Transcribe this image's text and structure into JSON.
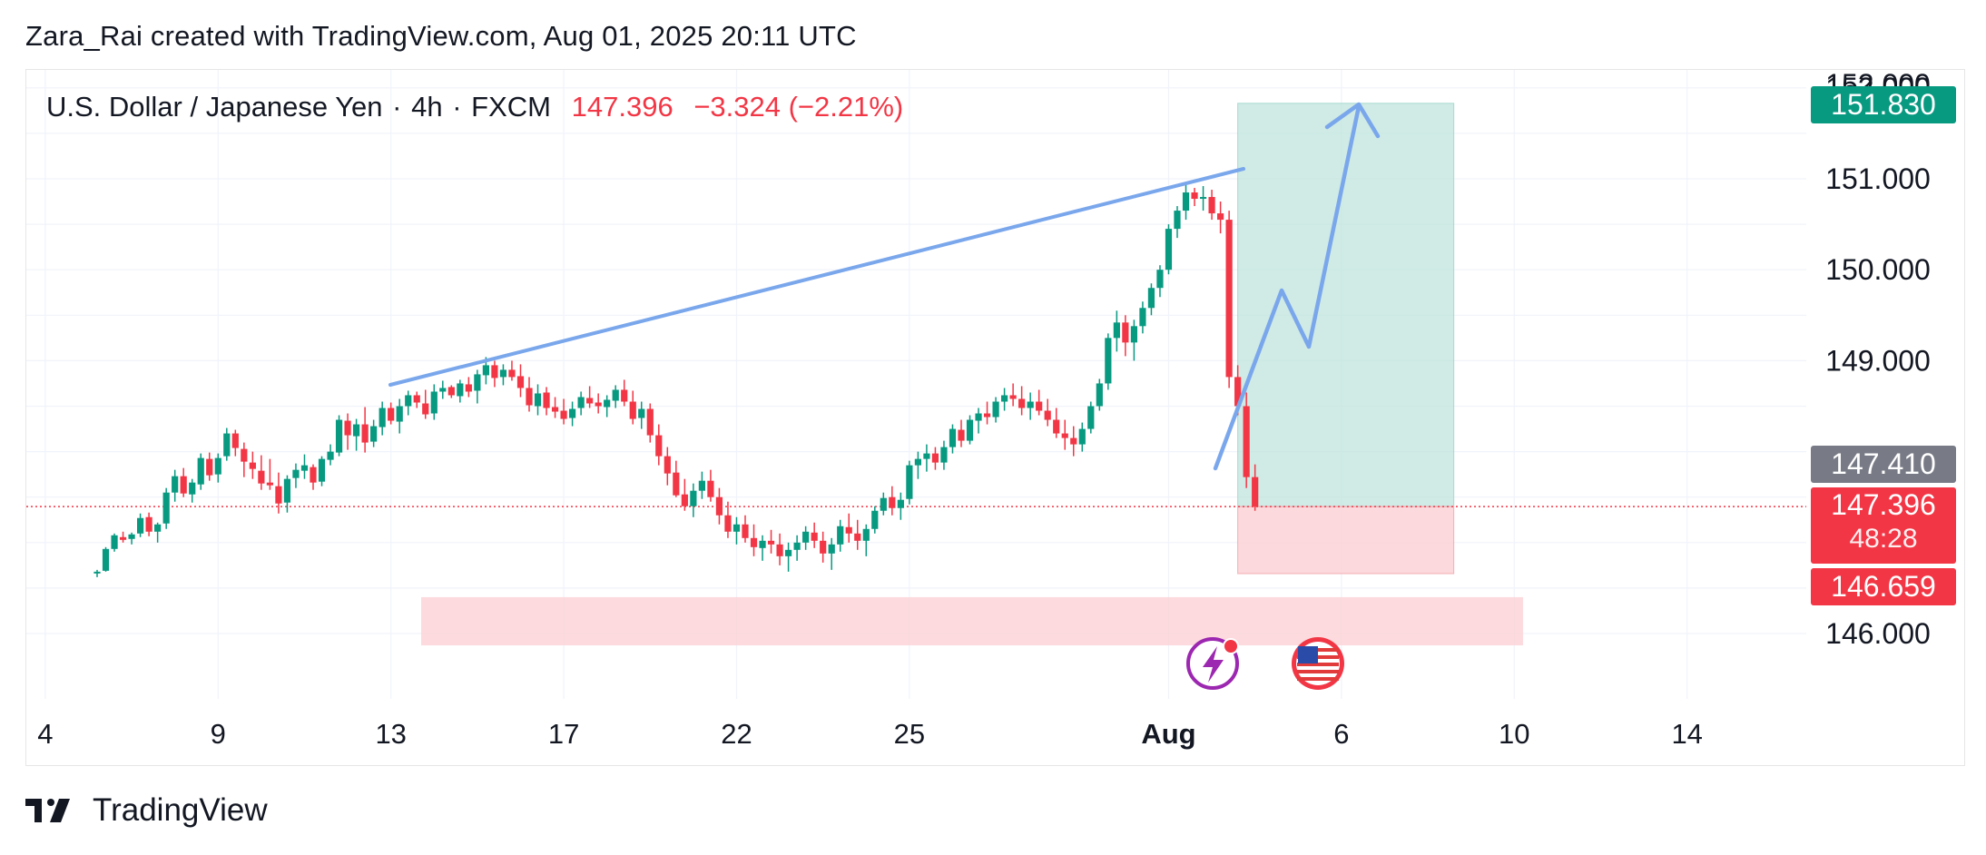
{
  "attribution": "Zara_Rai created with TradingView.com, Aug 01, 2025 20:11 UTC",
  "legend": {
    "symbol": "U.S. Dollar / Japanese Yen",
    "interval": "4h",
    "exchange": "FXCM",
    "separator": "·",
    "price": "147.396",
    "change": "−3.324 (−2.21%)"
  },
  "price_tags": {
    "target": "151.830",
    "last_close": "147.410",
    "current": "147.396",
    "countdown": "48:28",
    "stop": "146.659"
  },
  "footer": {
    "brand": "TradingView"
  },
  "colors": {
    "up": "#089981",
    "down": "#f23645",
    "trendline": "#7aa7ec",
    "target_zone": "#c3e6de",
    "stop_zone": "#fbd3d7",
    "support_zone": "#fbd3d7",
    "tag_target": "#089981",
    "tag_close": "#787b86",
    "tag_current": "#f23645"
  },
  "chart_data": {
    "type": "candlestick",
    "y_ticks": [
      "152.000",
      "151.000",
      "150.000",
      "149.000",
      "146.000"
    ],
    "x_ticks": [
      {
        "label": "4",
        "bar": -6
      },
      {
        "label": "9",
        "bar": 14
      },
      {
        "label": "13",
        "bar": 34
      },
      {
        "label": "17",
        "bar": 54
      },
      {
        "label": "22",
        "bar": 74
      },
      {
        "label": "25",
        "bar": 94
      },
      {
        "label": "Aug",
        "bar": 124,
        "bold": true
      },
      {
        "label": "6",
        "bar": 144
      },
      {
        "label": "10",
        "bar": 164
      },
      {
        "label": "14",
        "bar": 184
      }
    ],
    "ylim": [
      145.3,
      152.2
    ],
    "candles": [
      [
        146.66,
        146.7,
        146.62,
        146.68
      ],
      [
        146.69,
        146.95,
        146.68,
        146.93
      ],
      [
        146.93,
        147.1,
        146.9,
        147.08
      ],
      [
        147.06,
        147.12,
        147.0,
        147.03
      ],
      [
        147.04,
        147.11,
        146.98,
        147.09
      ],
      [
        147.1,
        147.32,
        147.06,
        147.27
      ],
      [
        147.28,
        147.33,
        147.07,
        147.12
      ],
      [
        147.12,
        147.22,
        147.0,
        147.2
      ],
      [
        147.21,
        147.6,
        147.15,
        147.55
      ],
      [
        147.55,
        147.8,
        147.45,
        147.73
      ],
      [
        147.73,
        147.82,
        147.5,
        147.54
      ],
      [
        147.53,
        147.7,
        147.44,
        147.66
      ],
      [
        147.64,
        147.98,
        147.58,
        147.93
      ],
      [
        147.92,
        147.99,
        147.68,
        147.74
      ],
      [
        147.75,
        147.98,
        147.66,
        147.93
      ],
      [
        147.95,
        148.26,
        147.9,
        148.2
      ],
      [
        148.2,
        148.24,
        147.95,
        148.04
      ],
      [
        148.03,
        148.1,
        147.72,
        147.89
      ],
      [
        147.88,
        148.0,
        147.7,
        147.81
      ],
      [
        147.79,
        147.96,
        147.58,
        147.65
      ],
      [
        147.66,
        147.92,
        147.58,
        147.63
      ],
      [
        147.62,
        147.77,
        147.32,
        147.43
      ],
      [
        147.44,
        147.74,
        147.33,
        147.7
      ],
      [
        147.71,
        147.87,
        147.6,
        147.8
      ],
      [
        147.79,
        147.97,
        147.7,
        147.85
      ],
      [
        147.83,
        147.86,
        147.58,
        147.66
      ],
      [
        147.67,
        147.95,
        147.62,
        147.92
      ],
      [
        147.91,
        148.08,
        147.85,
        148.0
      ],
      [
        147.99,
        148.4,
        147.95,
        148.35
      ],
      [
        148.34,
        148.42,
        148.02,
        148.18
      ],
      [
        148.17,
        148.36,
        148.01,
        148.3
      ],
      [
        148.3,
        148.49,
        147.99,
        148.1
      ],
      [
        148.11,
        148.35,
        148.05,
        148.28
      ],
      [
        148.27,
        148.55,
        148.18,
        148.48
      ],
      [
        148.48,
        148.54,
        148.3,
        148.34
      ],
      [
        148.33,
        148.58,
        148.2,
        148.5
      ],
      [
        148.5,
        148.67,
        148.4,
        148.62
      ],
      [
        148.62,
        148.66,
        148.48,
        148.54
      ],
      [
        148.53,
        148.68,
        148.36,
        148.41
      ],
      [
        148.42,
        148.74,
        148.35,
        148.66
      ],
      [
        148.66,
        148.78,
        148.58,
        148.7
      ],
      [
        148.71,
        148.73,
        148.59,
        148.62
      ],
      [
        148.61,
        148.79,
        148.54,
        148.75
      ],
      [
        148.74,
        148.82,
        148.6,
        148.66
      ],
      [
        148.67,
        148.9,
        148.53,
        148.85
      ],
      [
        148.84,
        149.04,
        148.74,
        148.95
      ],
      [
        148.95,
        149.0,
        148.71,
        148.81
      ],
      [
        148.82,
        148.96,
        148.73,
        148.9
      ],
      [
        148.9,
        149.0,
        148.78,
        148.82
      ],
      [
        148.83,
        148.96,
        148.6,
        148.7
      ],
      [
        148.7,
        148.82,
        148.44,
        148.51
      ],
      [
        148.5,
        148.74,
        148.4,
        148.64
      ],
      [
        148.65,
        148.71,
        148.4,
        148.48
      ],
      [
        148.49,
        148.6,
        148.37,
        148.44
      ],
      [
        148.45,
        148.58,
        148.3,
        148.36
      ],
      [
        148.37,
        148.55,
        148.28,
        148.47
      ],
      [
        148.48,
        148.66,
        148.4,
        148.6
      ],
      [
        148.59,
        148.72,
        148.48,
        148.53
      ],
      [
        148.54,
        148.64,
        148.42,
        148.5
      ],
      [
        148.49,
        148.62,
        148.38,
        148.57
      ],
      [
        148.56,
        148.73,
        148.48,
        148.68
      ],
      [
        148.68,
        148.79,
        148.5,
        148.55
      ],
      [
        148.55,
        148.67,
        148.3,
        148.36
      ],
      [
        148.37,
        148.55,
        148.25,
        148.47
      ],
      [
        148.47,
        148.53,
        148.1,
        148.18
      ],
      [
        148.18,
        148.3,
        147.85,
        147.95
      ],
      [
        147.95,
        148.05,
        147.63,
        147.76
      ],
      [
        147.77,
        147.9,
        147.5,
        147.52
      ],
      [
        147.53,
        147.7,
        147.35,
        147.4
      ],
      [
        147.4,
        147.65,
        147.28,
        147.57
      ],
      [
        147.57,
        147.78,
        147.48,
        147.68
      ],
      [
        147.68,
        147.8,
        147.45,
        147.5
      ],
      [
        147.5,
        147.6,
        147.2,
        147.3
      ],
      [
        147.3,
        147.45,
        147.05,
        147.12
      ],
      [
        147.12,
        147.28,
        146.98,
        147.2
      ],
      [
        147.2,
        147.3,
        147.0,
        147.05
      ],
      [
        147.05,
        147.2,
        146.85,
        146.95
      ],
      [
        146.94,
        147.08,
        146.8,
        147.02
      ],
      [
        147.02,
        147.14,
        146.88,
        146.98
      ],
      [
        146.98,
        147.1,
        146.75,
        146.85
      ],
      [
        146.85,
        147.0,
        146.68,
        146.92
      ],
      [
        146.92,
        147.08,
        146.8,
        147.0
      ],
      [
        147.0,
        147.18,
        146.92,
        147.12
      ],
      [
        147.11,
        147.22,
        146.94,
        147.02
      ],
      [
        147.02,
        147.12,
        146.78,
        146.88
      ],
      [
        146.88,
        147.05,
        146.7,
        146.98
      ],
      [
        146.98,
        147.25,
        146.9,
        147.18
      ],
      [
        147.17,
        147.32,
        147.0,
        147.1
      ],
      [
        147.1,
        147.25,
        146.92,
        147.02
      ],
      [
        147.02,
        147.2,
        146.85,
        147.15
      ],
      [
        147.15,
        147.4,
        147.1,
        147.35
      ],
      [
        147.35,
        147.55,
        147.3,
        147.49
      ],
      [
        147.5,
        147.62,
        147.3,
        147.38
      ],
      [
        147.38,
        147.55,
        147.25,
        147.47
      ],
      [
        147.48,
        147.9,
        147.42,
        147.85
      ],
      [
        147.85,
        148.0,
        147.7,
        147.92
      ],
      [
        147.92,
        148.08,
        147.78,
        147.98
      ],
      [
        147.98,
        148.05,
        147.8,
        147.88
      ],
      [
        147.88,
        148.12,
        147.8,
        148.05
      ],
      [
        148.05,
        148.3,
        147.98,
        148.25
      ],
      [
        148.24,
        148.35,
        148.05,
        148.12
      ],
      [
        148.12,
        148.4,
        148.08,
        148.35
      ],
      [
        148.34,
        148.48,
        148.2,
        148.42
      ],
      [
        148.42,
        148.55,
        148.3,
        148.38
      ],
      [
        148.38,
        148.6,
        148.32,
        148.55
      ],
      [
        148.55,
        148.7,
        148.45,
        148.62
      ],
      [
        148.62,
        148.75,
        148.5,
        148.58
      ],
      [
        148.58,
        148.72,
        148.4,
        148.48
      ],
      [
        148.48,
        148.65,
        148.35,
        148.55
      ],
      [
        148.55,
        148.68,
        148.4,
        148.45
      ],
      [
        148.45,
        148.58,
        148.28,
        148.35
      ],
      [
        148.35,
        148.48,
        148.15,
        148.2
      ],
      [
        148.2,
        148.35,
        148.02,
        148.15
      ],
      [
        148.15,
        148.28,
        147.95,
        148.08
      ],
      [
        148.08,
        148.32,
        148.0,
        148.25
      ],
      [
        148.25,
        148.55,
        148.2,
        148.5
      ],
      [
        148.5,
        148.8,
        148.45,
        148.75
      ],
      [
        148.75,
        149.3,
        148.68,
        149.25
      ],
      [
        149.25,
        149.55,
        149.1,
        149.42
      ],
      [
        149.42,
        149.5,
        149.05,
        149.2
      ],
      [
        149.2,
        149.45,
        149.0,
        149.38
      ],
      [
        149.38,
        149.65,
        149.3,
        149.58
      ],
      [
        149.58,
        149.85,
        149.5,
        149.8
      ],
      [
        149.8,
        150.05,
        149.7,
        150.0
      ],
      [
        150.0,
        150.5,
        149.95,
        150.45
      ],
      [
        150.45,
        150.7,
        150.35,
        150.65
      ],
      [
        150.65,
        150.95,
        150.55,
        150.85
      ],
      [
        150.85,
        150.9,
        150.7,
        150.78
      ],
      [
        150.78,
        150.92,
        150.65,
        150.8
      ],
      [
        150.8,
        150.88,
        150.55,
        150.62
      ],
      [
        150.62,
        150.75,
        150.4,
        150.55
      ],
      [
        150.55,
        150.65,
        148.7,
        148.82
      ],
      [
        148.82,
        148.95,
        148.4,
        148.5
      ],
      [
        148.5,
        148.65,
        147.6,
        147.72
      ],
      [
        147.72,
        147.86,
        147.35,
        147.396
      ]
    ]
  }
}
